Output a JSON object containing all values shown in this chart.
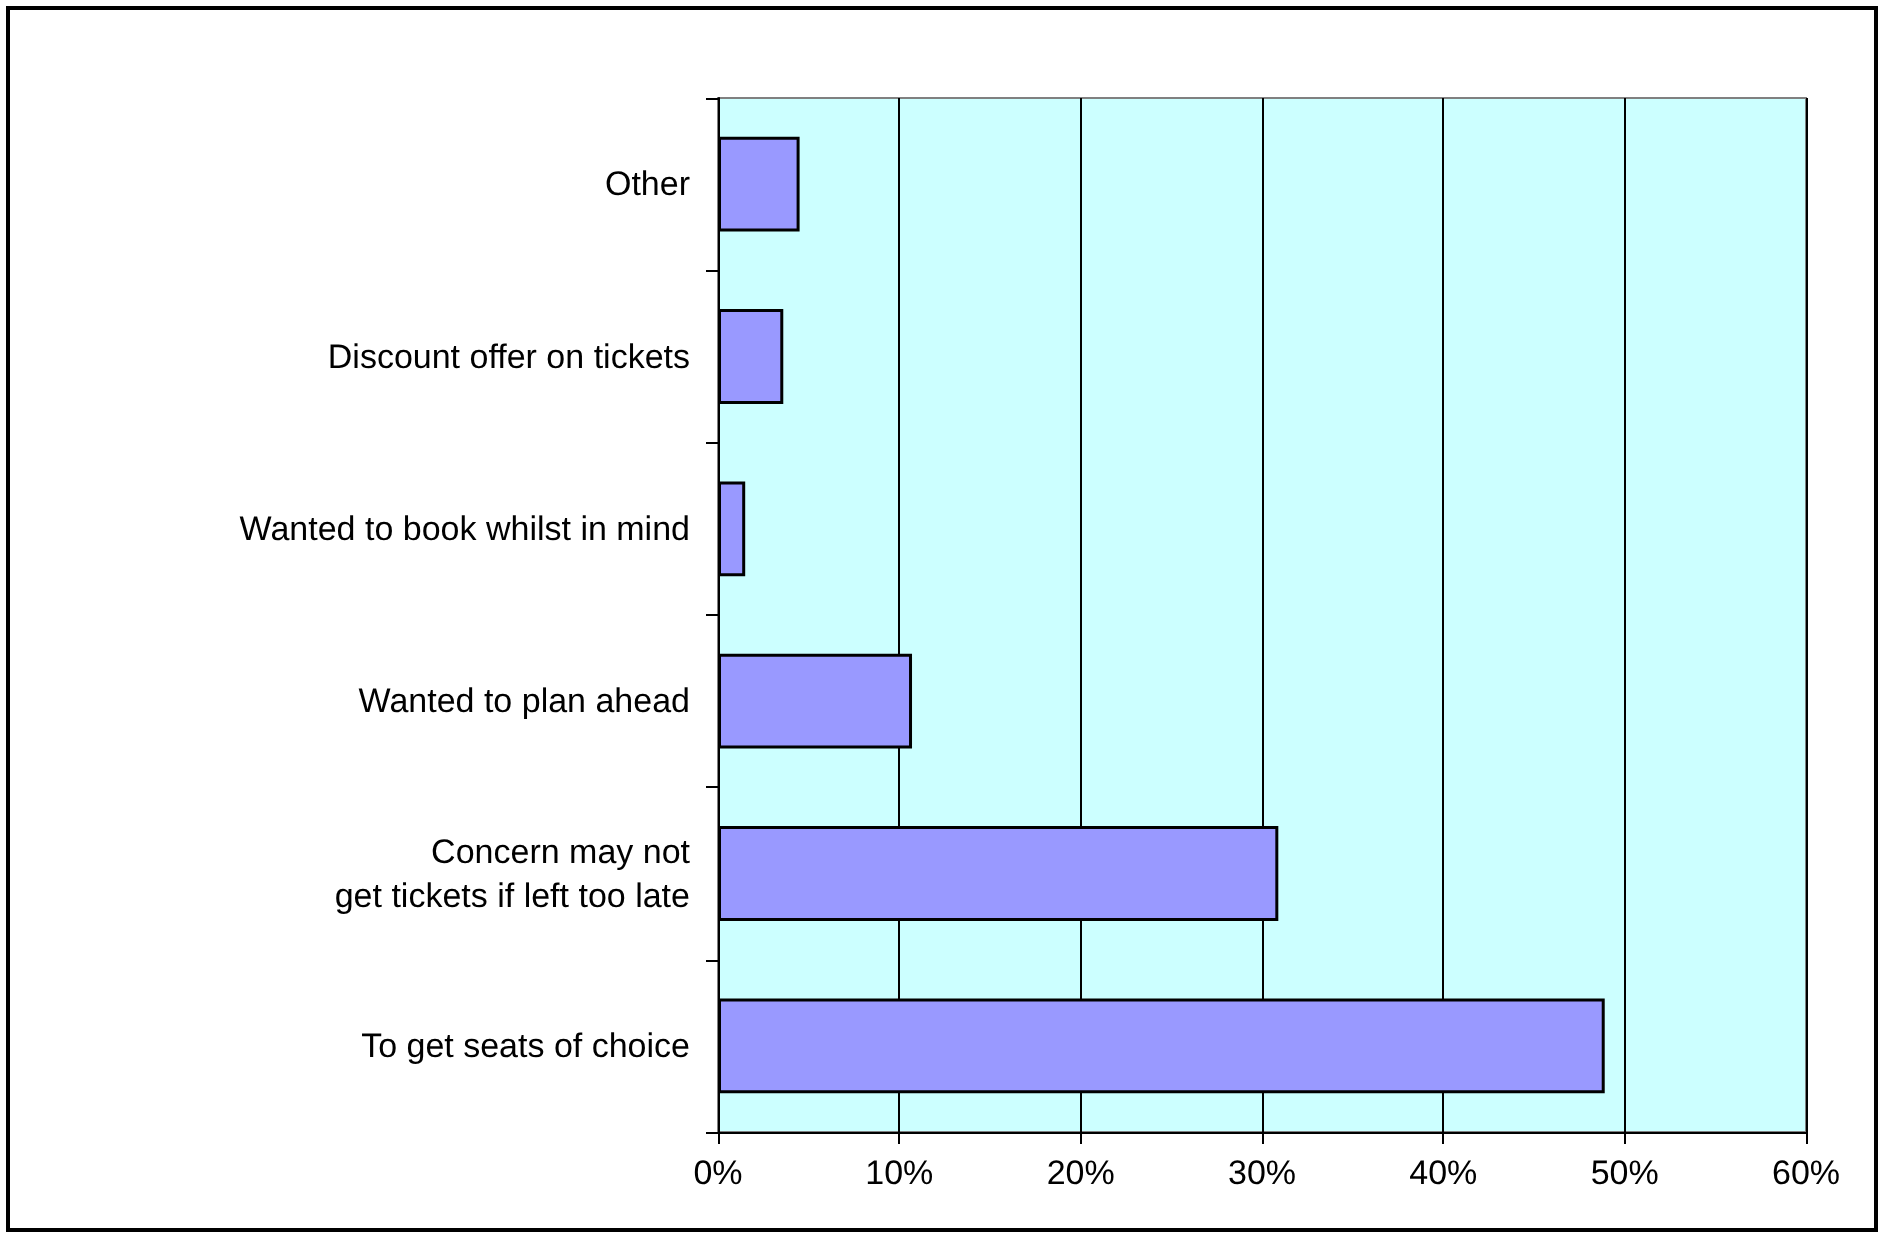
{
  "chart_data": {
    "type": "bar",
    "orientation": "horizontal",
    "categories": [
      "Other",
      "Discount offer on tickets",
      "Wanted to book whilst in mind",
      "Wanted to plan ahead",
      "Concern may not\nget tickets if left too late",
      "To get seats of choice"
    ],
    "values": [
      4.5,
      3.6,
      1.5,
      10.7,
      30.9,
      48.9
    ],
    "color": "#9999ff",
    "xlim": [
      0,
      60
    ],
    "xticks": [
      {
        "value": 0,
        "label": "0%"
      },
      {
        "value": 10,
        "label": "10%"
      },
      {
        "value": 20,
        "label": "20%"
      },
      {
        "value": 30,
        "label": "30%"
      },
      {
        "value": 40,
        "label": "40%"
      },
      {
        "value": 50,
        "label": "50%"
      },
      {
        "value": 60,
        "label": "60%"
      }
    ],
    "grid": "x"
  }
}
